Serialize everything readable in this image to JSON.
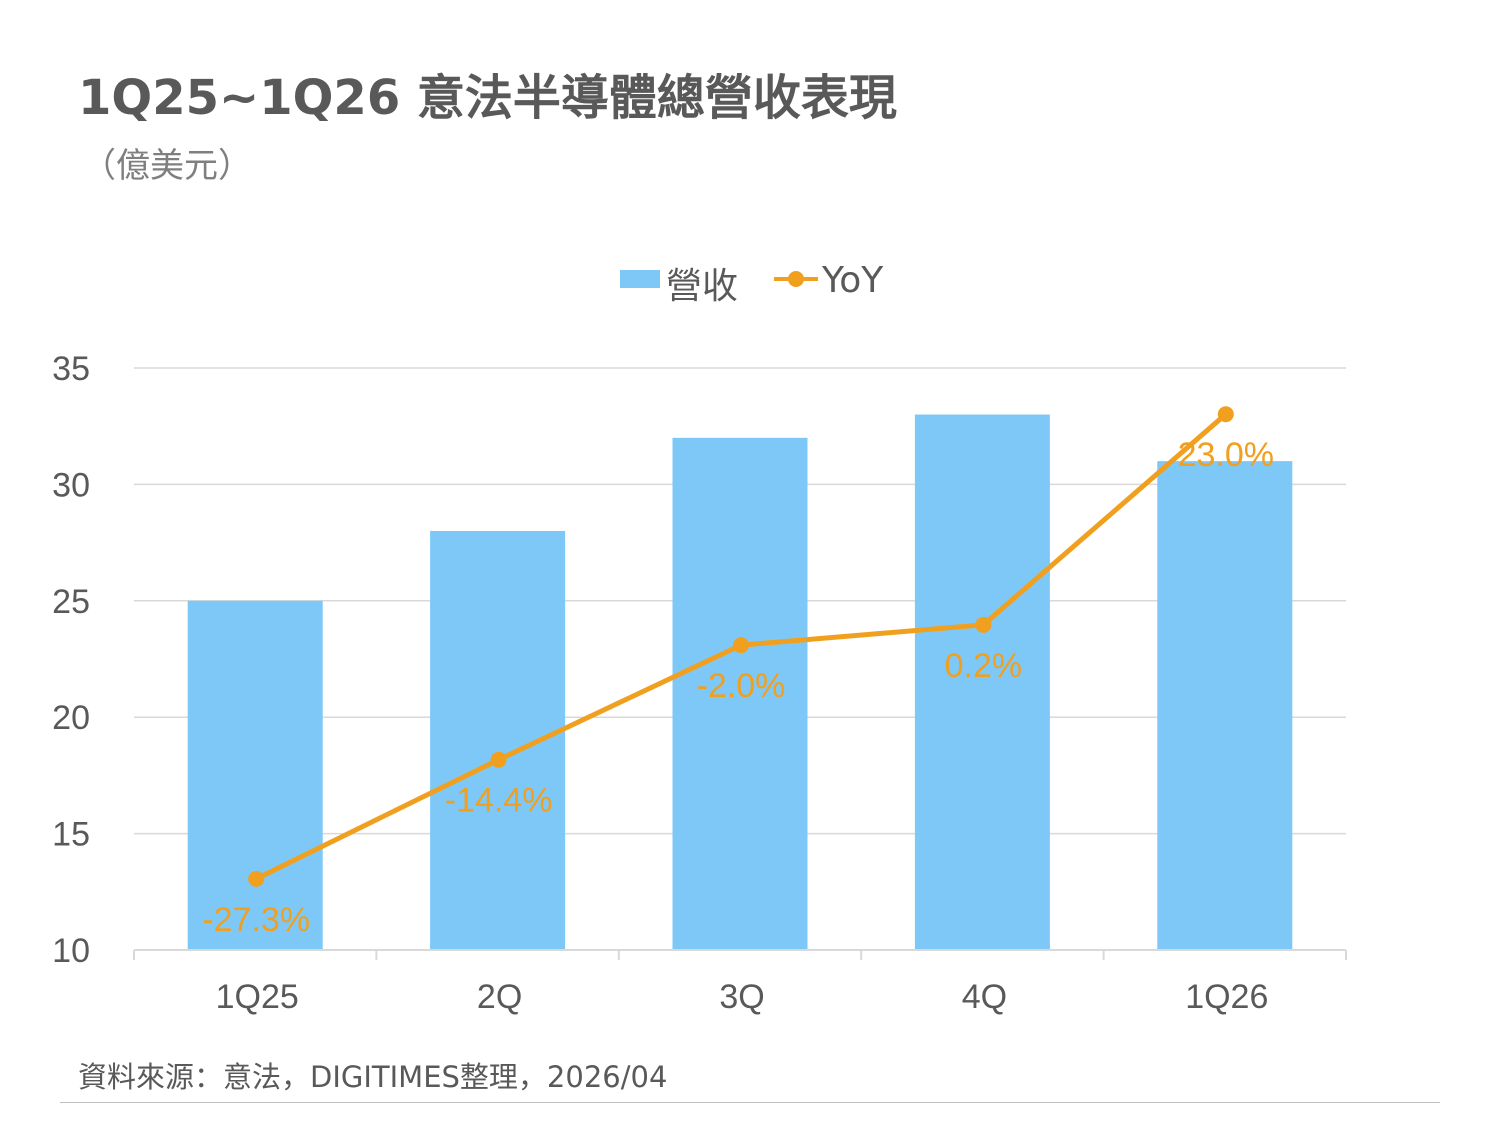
{
  "header": {
    "title": "1Q25~1Q26 意法半導體總營收表現",
    "unit": "（億美元）"
  },
  "footer": {
    "source": "資料來源：意法，DIGITIMES整理，2026/04"
  },
  "colors": {
    "bar": "#7ec8f7",
    "line": "#f0a01e",
    "grid": "#d9d9d9",
    "axis_text": "#595959"
  },
  "chart_data": {
    "type": "bar",
    "categories": [
      "1Q25",
      "2Q",
      "3Q",
      "4Q",
      "1Q26"
    ],
    "series": [
      {
        "name": "營收",
        "type": "bar",
        "axis": "left",
        "values": [
          25,
          28,
          32,
          33,
          31
        ]
      },
      {
        "name": "YoY",
        "type": "line",
        "axis": "right",
        "unit": "%",
        "values": [
          -27.3,
          -14.4,
          -2.0,
          0.2,
          23.0
        ],
        "labels": [
          "-27.3%",
          "-14.4%",
          "-2.0%",
          "0.2%",
          "23.0%"
        ]
      }
    ],
    "yticks": [
      "35",
      "30",
      "25",
      "20",
      "15",
      "10"
    ],
    "ylim": [
      10,
      35
    ],
    "y2lim": [
      -35,
      28
    ],
    "grid": true,
    "legend_position": "top-center"
  }
}
